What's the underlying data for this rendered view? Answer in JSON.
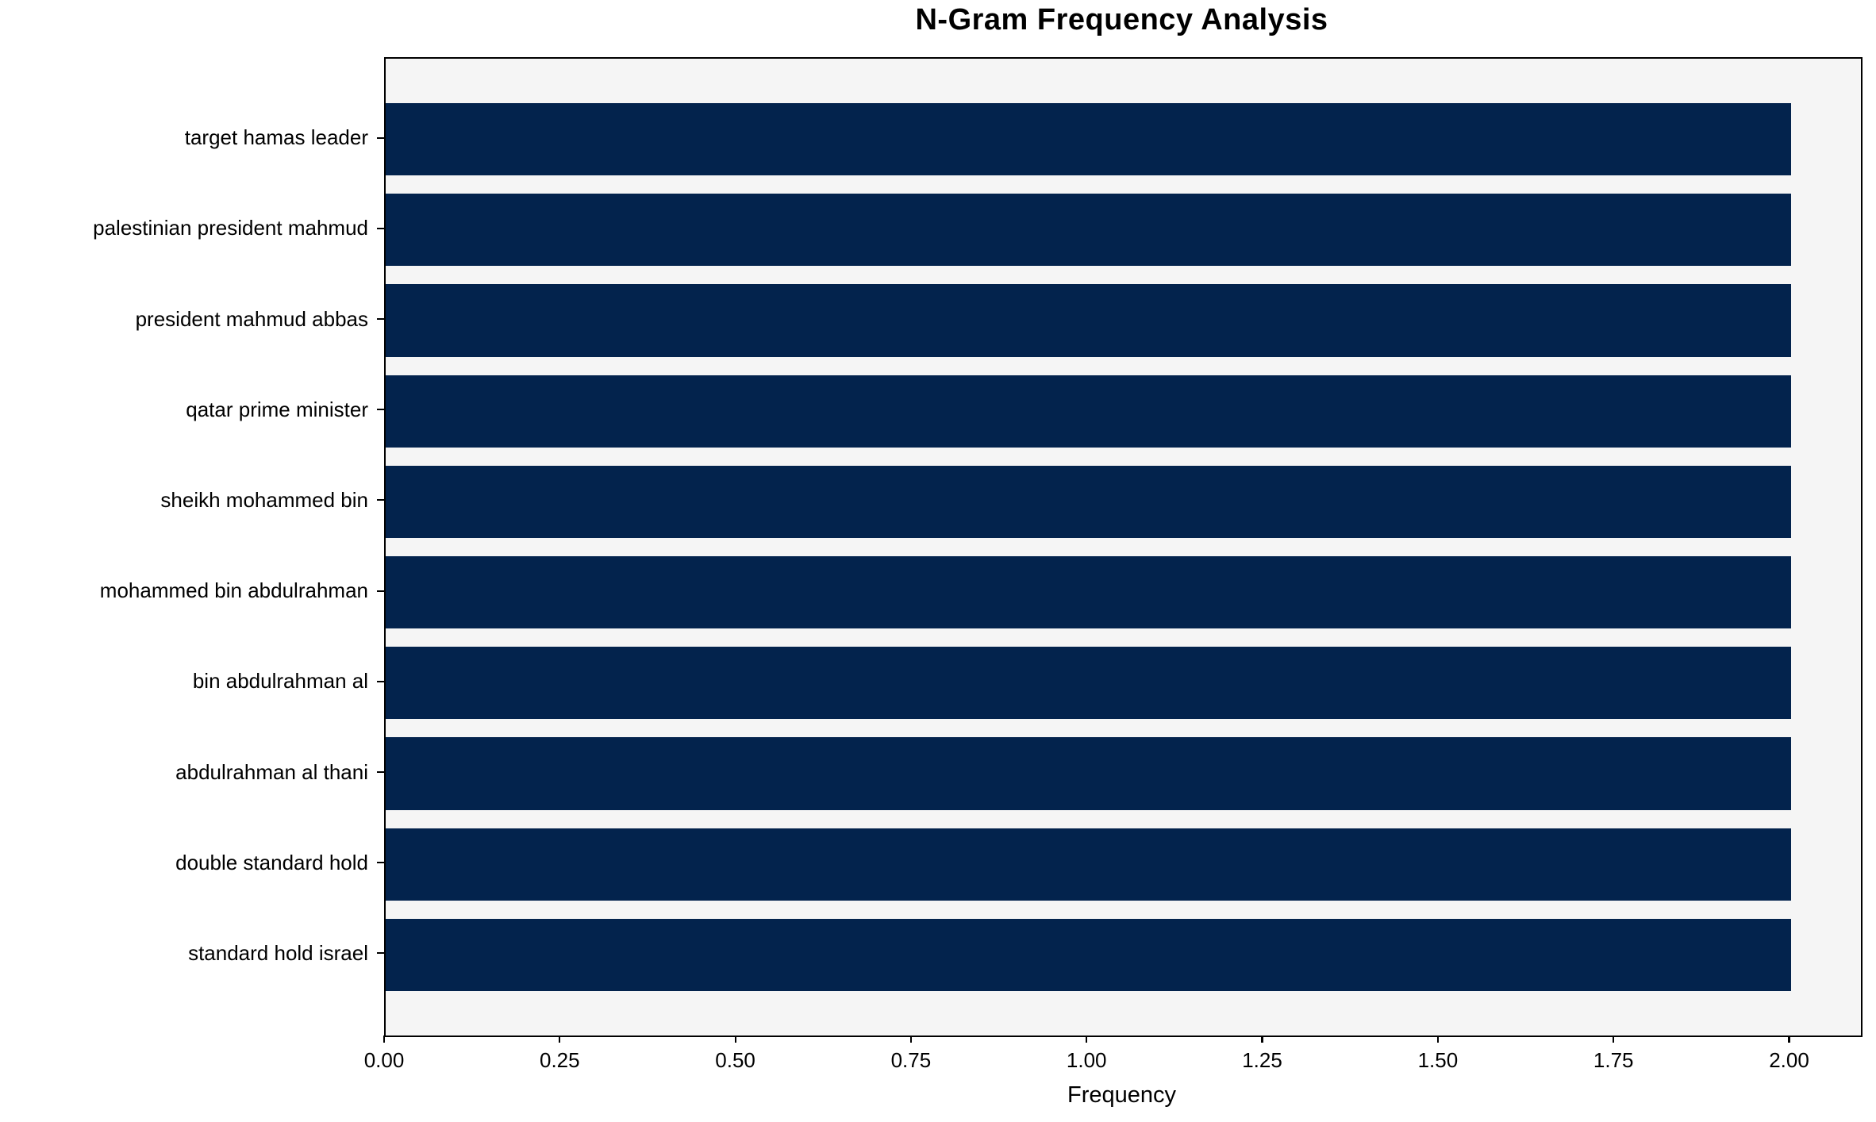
{
  "title": "N-Gram Frequency Analysis",
  "colors": {
    "bar": "#03234d",
    "plot_background": "#f5f5f5",
    "figure_background": "#ffffff",
    "spine": "#000000",
    "text": "#000000"
  },
  "chart_data": {
    "type": "bar",
    "orientation": "horizontal",
    "title": "N-Gram Frequency Analysis",
    "xlabel": "Frequency",
    "ylabel": "",
    "categories": [
      "target hamas leader",
      "palestinian president mahmud",
      "president mahmud abbas",
      "qatar prime minister",
      "sheikh mohammed bin",
      "mohammed bin abdulrahman",
      "bin abdulrahman al",
      "abdulrahman al thani",
      "double standard hold",
      "standard hold israel"
    ],
    "values": [
      2,
      2,
      2,
      2,
      2,
      2,
      2,
      2,
      2,
      2
    ],
    "xlim": [
      0,
      2.1
    ],
    "xticks": [
      0.0,
      0.25,
      0.5,
      0.75,
      1.0,
      1.25,
      1.5,
      1.75,
      2.0
    ],
    "xtick_labels": [
      "0.00",
      "0.25",
      "0.50",
      "0.75",
      "1.00",
      "1.25",
      "1.50",
      "1.75",
      "2.00"
    ],
    "bar_relative_height": 0.8,
    "grid": false,
    "legend": null
  }
}
